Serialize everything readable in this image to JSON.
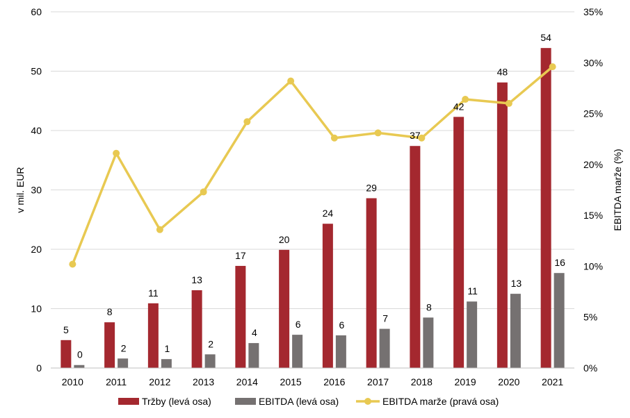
{
  "chart_data": {
    "type": "bar",
    "categories": [
      "2010",
      "2011",
      "2012",
      "2013",
      "2014",
      "2015",
      "2016",
      "2017",
      "2018",
      "2019",
      "2020",
      "2021"
    ],
    "series": [
      {
        "name": "Tržby (levá osa)",
        "kind": "bar",
        "axis": "left",
        "color": "#A4282F",
        "values": [
          4.7,
          7.7,
          10.9,
          13.1,
          17.2,
          19.9,
          24.3,
          28.6,
          37.4,
          42.3,
          48.1,
          53.9
        ],
        "labels": [
          "5",
          "8",
          "11",
          "13",
          "17",
          "20",
          "24",
          "29",
          "37",
          "42",
          "48",
          "54"
        ]
      },
      {
        "name": "EBITDA (levá osa)",
        "kind": "bar",
        "axis": "left",
        "color": "#757171",
        "values": [
          0.5,
          1.6,
          1.5,
          2.3,
          4.2,
          5.6,
          5.5,
          6.6,
          8.5,
          11.2,
          12.5,
          16.0
        ],
        "labels": [
          "0",
          "2",
          "1",
          "2",
          "4",
          "6",
          "6",
          "7",
          "8",
          "11",
          "13",
          "16"
        ]
      },
      {
        "name": "EBITDA marže (pravá osa)",
        "kind": "line",
        "axis": "right",
        "color": "#E8C952",
        "values": [
          10.2,
          21.1,
          13.6,
          17.3,
          24.2,
          28.2,
          22.6,
          23.1,
          22.6,
          26.4,
          26.0,
          29.6
        ]
      }
    ],
    "ylabel": "v mil. EUR",
    "y2label": "EBITDA marže (%)",
    "ylim": [
      0,
      60
    ],
    "y2lim": [
      0,
      35
    ],
    "yticks": [
      "0",
      "10",
      "20",
      "30",
      "40",
      "50",
      "60"
    ],
    "y2ticks": [
      "0%",
      "5%",
      "10%",
      "15%",
      "20%",
      "25%",
      "30%",
      "35%"
    ],
    "grid": true,
    "legend_position": "bottom"
  }
}
